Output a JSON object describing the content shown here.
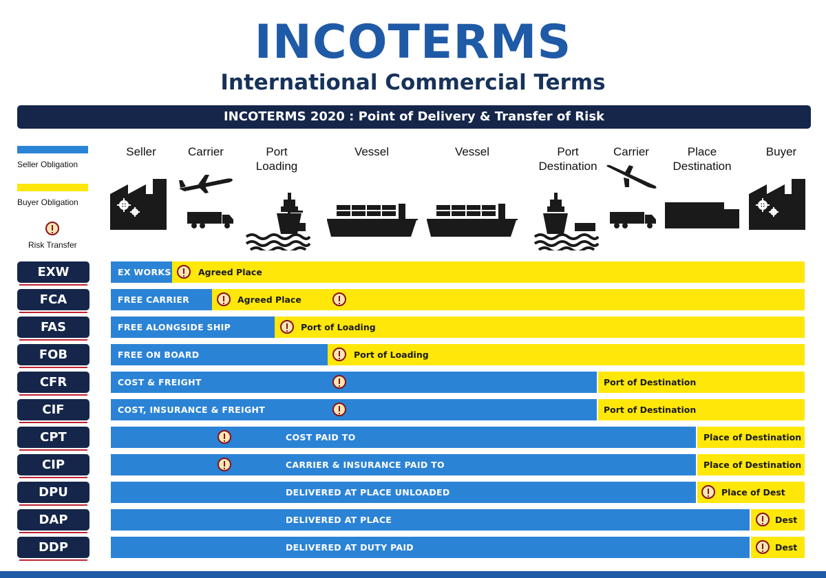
{
  "header": {
    "title": "INCOTERMS",
    "subtitle": "International Commercial Terms",
    "banner": "INCOTERMS 2020 : Point of Delivery & Transfer of Risk"
  },
  "legend": {
    "seller": "Seller Obligation",
    "buyer": "Buyer Obligation",
    "risk": "Risk Transfer"
  },
  "columns": [
    {
      "line1": "Seller",
      "line2": ""
    },
    {
      "line1": "Carrier",
      "line2": ""
    },
    {
      "line1": "Port",
      "line2": "Loading"
    },
    {
      "line1": "Vessel",
      "line2": ""
    },
    {
      "line1": "Vessel",
      "line2": ""
    },
    {
      "line1": "Port",
      "line2": "Destination"
    },
    {
      "line1": "Carrier",
      "line2": ""
    },
    {
      "line1": "Place",
      "line2": "Destination"
    },
    {
      "line1": "Buyer",
      "line2": ""
    }
  ],
  "terms": [
    {
      "code": "EXW",
      "seller_text": "EX WORKS",
      "buyer_text": "Agreed Place"
    },
    {
      "code": "FCA",
      "seller_text": "FREE CARRIER",
      "buyer_text": "Agreed Place"
    },
    {
      "code": "FAS",
      "seller_text": "FREE ALONGSIDE SHIP",
      "buyer_text": "Port of Loading"
    },
    {
      "code": "FOB",
      "seller_text": "FREE ON BOARD",
      "buyer_text": "Port of Loading"
    },
    {
      "code": "CFR",
      "seller_text": "COST & FREIGHT",
      "buyer_text": "Port of Destination"
    },
    {
      "code": "CIF",
      "seller_text": "COST, INSURANCE & FREIGHT",
      "buyer_text": "Port of Destination"
    },
    {
      "code": "CPT",
      "seller_text": "COST PAID TO",
      "buyer_text": "Place of Destination"
    },
    {
      "code": "CIP",
      "seller_text": "CARRIER & INSURANCE PAID TO",
      "buyer_text": "Place of Destination"
    },
    {
      "code": "DPU",
      "seller_text": "DELIVERED AT PLACE UNLOADED",
      "buyer_text": "Place of Dest"
    },
    {
      "code": "DAP",
      "seller_text": "DELIVERED AT PLACE",
      "buyer_text": "Dest"
    },
    {
      "code": "DDP",
      "seller_text": "DELIVERED AT DUTY PAID",
      "buyer_text": "Dest"
    }
  ],
  "colors": {
    "seller": "#2b83d6",
    "buyer": "#ffe70a",
    "navy": "#15264a",
    "title_blue": "#1f5aa7",
    "risk": "#8b0f16"
  },
  "icons": [
    "factory-icon",
    "airplane-icon",
    "truck-icon",
    "ship-port-icon",
    "container-vessel-icon",
    "warehouse-icon",
    "risk-transfer-icon"
  ]
}
